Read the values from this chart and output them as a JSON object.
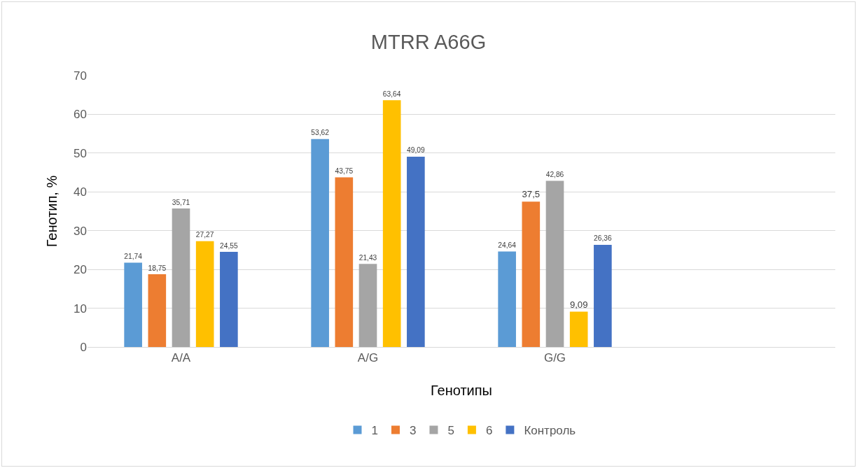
{
  "chart_data": {
    "type": "bar",
    "title": "MTRR A66G",
    "xlabel": "Генотипы",
    "ylabel": "Генотип, %",
    "categories": [
      "A/A",
      "A/G",
      "G/G",
      null
    ],
    "series": [
      {
        "name": "1",
        "color": "#5b9bd5",
        "values": [
          21.74,
          53.62,
          24.64,
          null
        ],
        "value_labels": [
          "21,74",
          "53,62",
          "24,64",
          null
        ]
      },
      {
        "name": "3",
        "color": "#ed7d31",
        "values": [
          18.75,
          43.75,
          37.5,
          null
        ],
        "value_labels": [
          "18,75",
          "43,75",
          "37,5",
          null
        ]
      },
      {
        "name": "5",
        "color": "#a5a5a5",
        "values": [
          35.71,
          21.43,
          42.86,
          null
        ],
        "value_labels": [
          "35,71",
          "21,43",
          "42,86",
          null
        ]
      },
      {
        "name": "6",
        "color": "#ffc000",
        "values": [
          27.27,
          63.64,
          9.09,
          null
        ],
        "value_labels": [
          "27,27",
          "63,64",
          "9,09",
          null
        ]
      },
      {
        "name": "Контроль",
        "color": "#4472c4",
        "values": [
          24.55,
          49.09,
          26.36,
          null
        ],
        "value_labels": [
          "24,55",
          "49,09",
          "26,36",
          null
        ]
      }
    ],
    "ylim": [
      0,
      70
    ],
    "yticks": [
      0,
      10,
      20,
      30,
      40,
      50,
      60,
      70
    ],
    "grid": "y",
    "legend": "bottom"
  }
}
